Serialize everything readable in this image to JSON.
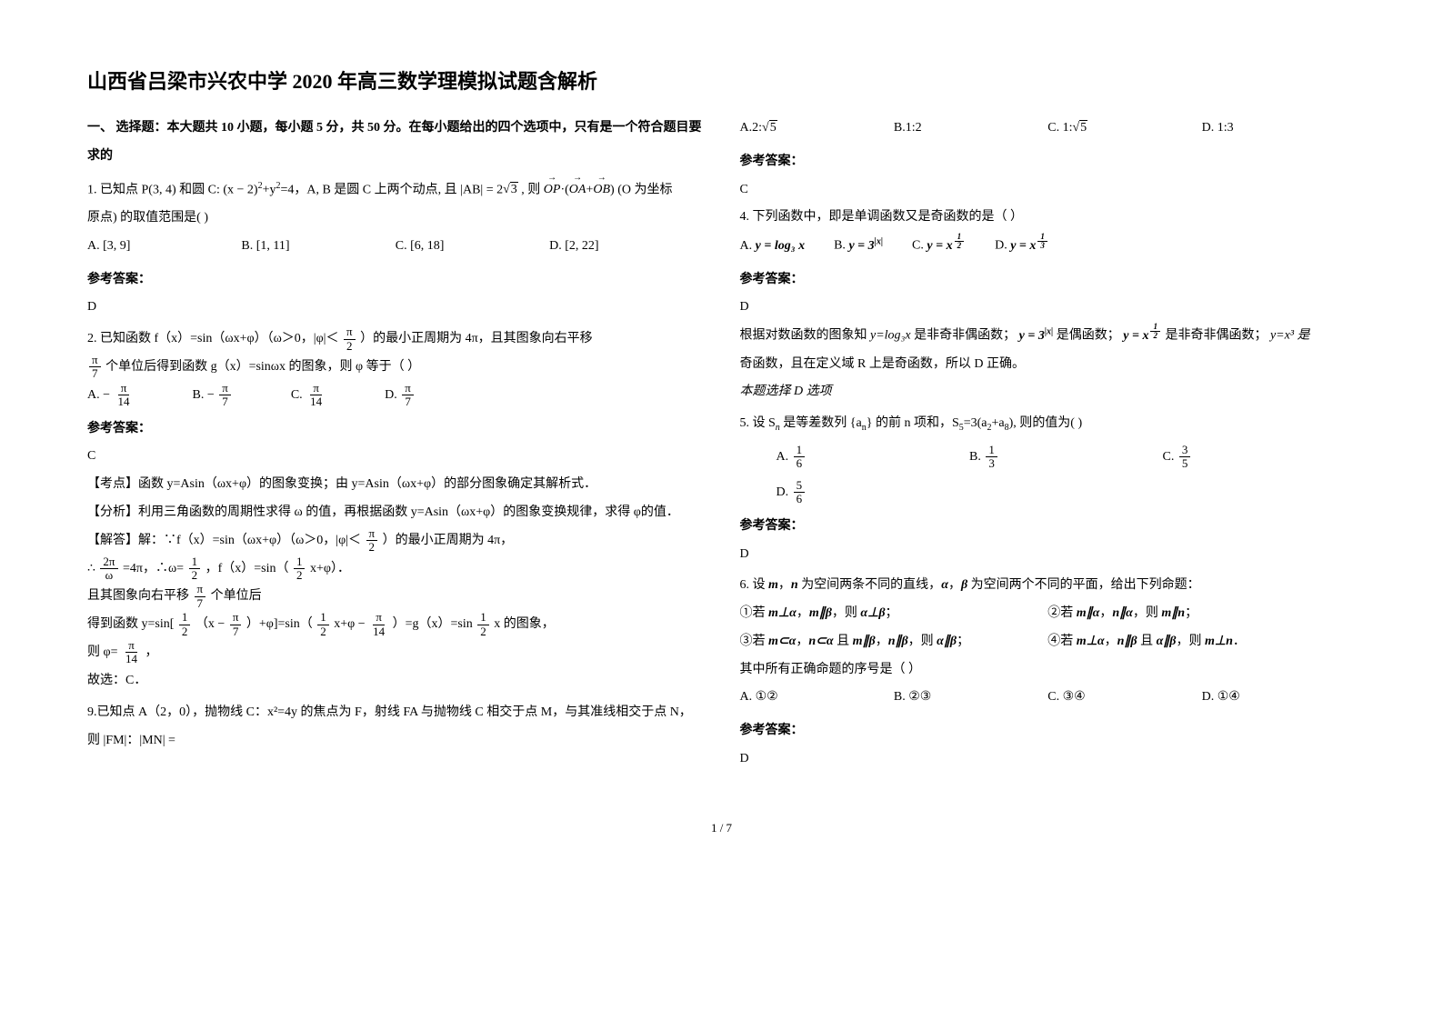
{
  "title": "山西省吕梁市兴农中学 2020 年高三数学理模拟试题含解析",
  "section1_head": "一、 选择题：本大题共 10 小题，每小题 5 分，共 50 分。在每小题给出的四个选项中，只有是一个符合题目要求的",
  "q1": {
    "stem_a": "1. 已知点 P(3, 4) 和圆 C: (x − 2)",
    "stem_b": "+y",
    "stem_c": "=4，A, B 是圆 C 上两个动点, 且 |AB| = ",
    "ab_val": "2",
    "ab_rad": "3",
    "stem_d": " , 则 ",
    "vec1": "OP",
    "vec_dot": "·(",
    "vec2": "OA",
    "vec_plus": "+",
    "vec3": "OB",
    "vec_end": ")",
    "stem_e": " (O 为坐标",
    "stem_line2": "原点) 的取值范围是(        )",
    "A": "A.  [3, 9]",
    "B": "B.  [1, 11]",
    "C": "C.  [6, 18]",
    "D": "D.  [2, 22]",
    "ans_label": "参考答案：",
    "ans": "D"
  },
  "q2": {
    "stem_a": "2. 已知函数 f（x）=sin（ωx+φ）（ω＞0，|φ|＜",
    "frac1_n": "π",
    "frac1_d": "2",
    "stem_b": "）的最小正周期为 4π，且其图象向右平移",
    "frac2_n": "π",
    "frac2_d": "7",
    "stem_c": " 个单位后得到函数 g（x）=sinωx 的图象，则 φ 等于（    ）",
    "A_pre": "A.  − ",
    "A_n": "π",
    "A_d": "14",
    "B_pre": "B.  − ",
    "B_n": "π",
    "B_d": "7",
    "C_pre": "C.  ",
    "C_n": "π",
    "C_d": "14",
    "D_pre": "D.  ",
    "D_n": "π",
    "D_d": "7",
    "ans_label": "参考答案：",
    "ans": "C",
    "kd_label": "【考点】",
    "kd": "函数 y=Asin（ωx+φ）的图象变换；由 y=Asin（ωx+φ）的部分图象确定其解析式．",
    "fx_label": "【分析】",
    "fx": "利用三角函数的周期性求得 ω 的值，再根据函数 y=Asin（ωx+φ）的图象变换规律，求得 φ的值．",
    "jd_label": "【解答】",
    "jd_a": "解：∵f（x）=sin（ωx+φ）（ω＞0，|φ|＜",
    "jd_b": "）的最小正周期为 4π，",
    "line_a": "∴ ",
    "f2p_n": "2π",
    "f2p_d": "ω",
    "line_b": " =4π，∴ω=",
    "f12_n": "1",
    "f12_d": "2",
    "line_c": "，f（x）=sin（",
    "line_d": "x+φ）．",
    "shift_a": "且其图象向右平移 ",
    "shift_b": " 个单位后",
    "g_a": "得到函数 y=sin[",
    "g_b": "（x − ",
    "g_c": "）+φ]=sin（",
    "g_d": "x+φ − ",
    "f14_n": "π",
    "f14_d": "14",
    "g_e": "）=g（x）=sin",
    "g_f": "x 的图象，",
    "phi_a": "则 φ=",
    "phi_b": "，",
    "end": "故选：C．"
  },
  "q9": {
    "stem": "9.已知点 A（2，0），抛物线 C：x²=4y 的焦点为 F，射线 FA 与抛物线 C 相交于点 M，与其准线相交于点 N，则 |FM|：|MN| =",
    "A_pre": "A.2:",
    "A_rad": "5",
    "B": "B.1:2",
    "C_pre": "C. 1:",
    "C_rad": "5",
    "D": "D. 1:3",
    "ans_label": "参考答案：",
    "ans": "C"
  },
  "q4": {
    "stem": "4. 下列函数中，即是单调函数又是奇函数的是（      ）",
    "A_pre": "A. ",
    "A_math": "y = log₃ x",
    "B_pre": "B. ",
    "B_math_a": "y = 3",
    "B_exp": "|x|",
    "C_pre": "C. ",
    "C_math_a": "y = x",
    "C_exp_n": "1",
    "C_exp_d": "2",
    "D_pre": "D. ",
    "D_math_a": "y = x",
    "D_exp_n": "1",
    "D_exp_d": "3",
    "ans_label": "参考答案：",
    "ans": "D",
    "exp_a": "根据对数函数的图象知 ",
    "exp_b": "y=log₃x",
    "exp_c": " 是非奇非偶函数；",
    "exp_d": " 是偶函数；",
    "exp_e": " 是非奇非偶函数；",
    "exp_f": "y=x³ 是",
    "exp_line2": "奇函数，且在定义域 R 上是奇函数，所以 D 正确。",
    "exp_line3": "本题选择 D 选项"
  },
  "q5": {
    "stem_a": "5. 设 S",
    "stem_b": " 是等差数列 {a",
    "stem_c": "} 的前 n 项和，S",
    "stem_d": "=3(a",
    "stem_e": "+a",
    "stem_f": "), 则",
    "stem_g": "的值为(       )",
    "A_pre": "A.  ",
    "A_n": "1",
    "A_d": "6",
    "B_pre": "B.  ",
    "B_n": "1",
    "B_d": "3",
    "C_pre": "C.  ",
    "C_n": "3",
    "C_d": "5",
    "D_pre": "D.  ",
    "D_n": "5",
    "D_d": "6",
    "ans_label": "参考答案：",
    "ans": "D"
  },
  "q6": {
    "stem_a": "6. 设 ",
    "stem_b": "，",
    "stem_c": " 为空间两条不同的直线，",
    "stem_d": "，",
    "stem_e": " 为空间两个不同的平面，给出下列命题：",
    "p1a": "①若 ",
    "p1b": "，",
    "p1c": "，则 ",
    "p1d": "；",
    "p2a": "②若 ",
    "p2b": "，",
    "p2c": "，则 ",
    "p2d": "；",
    "p3a": "③若 ",
    "p3b": "，",
    "p3c": " 且 ",
    "p3d": "，",
    "p3e": "，则 ",
    "p3f": "；",
    "p4a": "④若 ",
    "p4b": "，",
    "p4c": " 且 ",
    "p4d": "，则 ",
    "p4e": "．",
    "tail": "其中所有正确命题的序号是（     ）",
    "A": "A.  ①②",
    "B": "B.  ②③",
    "C": "C.  ③④",
    "D": "D.  ①④",
    "ans_label": "参考答案：",
    "ans": "D"
  },
  "page_num": "1 / 7"
}
